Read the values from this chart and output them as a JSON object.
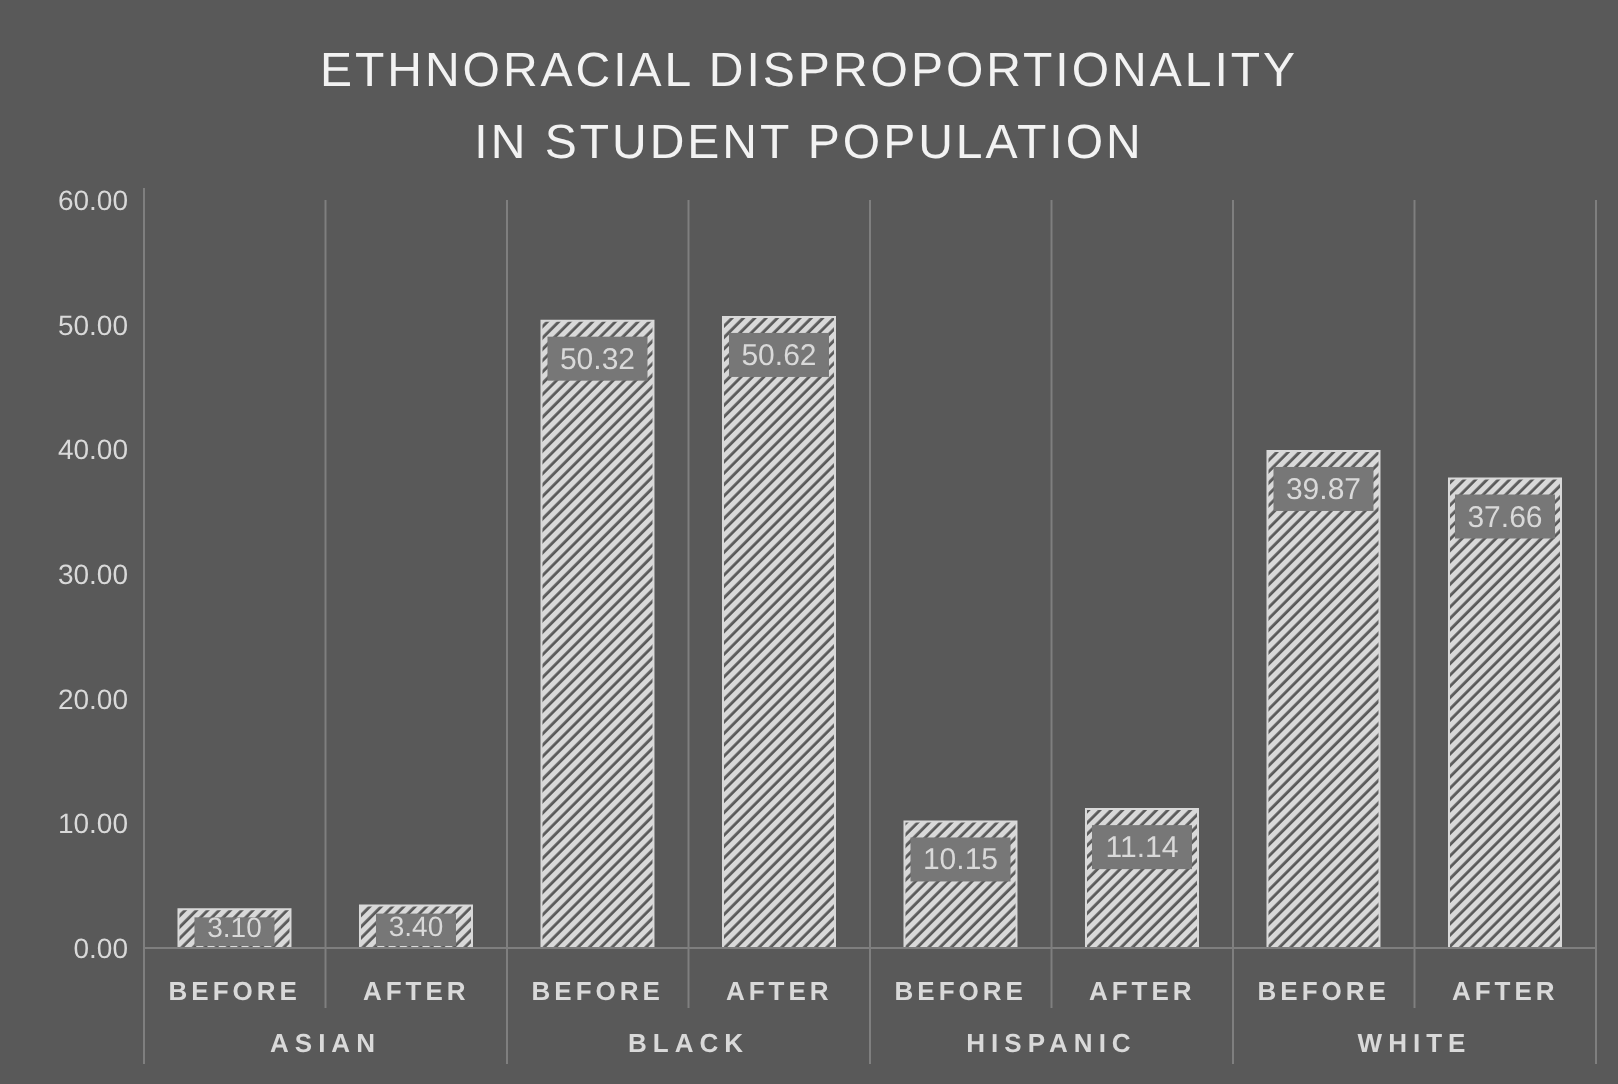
{
  "chart_data": {
    "type": "bar",
    "title": "ETHNORACIAL DISPROPORTIONALITY IN STUDENT POPULATION",
    "categories": [
      "BEFORE",
      "AFTER",
      "BEFORE",
      "AFTER",
      "BEFORE",
      "AFTER",
      "BEFORE",
      "AFTER"
    ],
    "annotations": [
      "ASIAN",
      "BLACK",
      "HISPANIC",
      "WHITE"
    ],
    "values": [
      3.1,
      3.4,
      50.32,
      50.62,
      10.15,
      11.14,
      39.87,
      37.66
    ],
    "color": "#d9d9d9",
    "ylim": [
      0,
      60
    ],
    "yticks": [
      {
        "value": 0,
        "label": "0.00"
      },
      {
        "value": 10,
        "label": "10.00"
      },
      {
        "value": 20,
        "label": "20.00"
      },
      {
        "value": 30,
        "label": "30.00"
      },
      {
        "value": 40,
        "label": "40.00"
      },
      {
        "value": 50,
        "label": "50.00"
      },
      {
        "value": 60,
        "label": "60.00"
      }
    ],
    "grid": "x",
    "value_labels": [
      "3.10",
      "3.40",
      "50.32",
      "50.62",
      "10.15",
      "11.14",
      "39.87",
      "37.66"
    ]
  }
}
